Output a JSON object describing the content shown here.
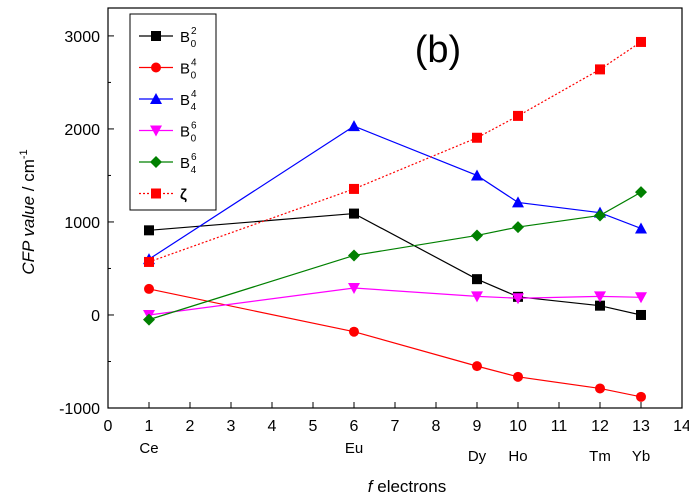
{
  "chart_data": {
    "type": "line",
    "panel_label": "(b)",
    "xlabel": {
      "italic": "f",
      "rest": " electrons"
    },
    "ylabel": {
      "italic": "CFP value",
      "rest": " / cm",
      "sup": "-1"
    },
    "xlim": [
      0,
      14
    ],
    "ylim": [
      -1000,
      3300
    ],
    "x_ticks": [
      0,
      1,
      2,
      3,
      4,
      5,
      6,
      7,
      8,
      9,
      10,
      11,
      12,
      13,
      14
    ],
    "y_ticks": [
      -1000,
      0,
      1000,
      2000,
      3000
    ],
    "grid": false,
    "legend_position": "top-left",
    "element_labels": [
      {
        "x": 1,
        "label": "Ce"
      },
      {
        "x": 6,
        "label": "Eu"
      },
      {
        "x": 9,
        "label": "Dy"
      },
      {
        "x": 10,
        "label": "Ho"
      },
      {
        "x": 12,
        "label": "Tm"
      },
      {
        "x": 13,
        "label": "Yb"
      }
    ],
    "x": [
      1,
      6,
      9,
      10,
      12,
      13
    ],
    "series": [
      {
        "name": "B",
        "sub": "0",
        "sup": "2",
        "color": "#000000",
        "marker": "square",
        "dashed": false,
        "values": [
          910,
          1090,
          385,
          195,
          100,
          0
        ]
      },
      {
        "name": "B",
        "sub": "0",
        "sup": "4",
        "color": "#ff0000",
        "marker": "circle",
        "dashed": false,
        "values": [
          280,
          -180,
          -550,
          -665,
          -790,
          -880
        ]
      },
      {
        "name": "B",
        "sub": "4",
        "sup": "4",
        "color": "#0000ff",
        "marker": "triangle-up",
        "dashed": false,
        "values": [
          600,
          2030,
          1500,
          1210,
          1100,
          930
        ]
      },
      {
        "name": "B",
        "sub": "0",
        "sup": "6",
        "color": "#ff00ff",
        "marker": "triangle-down",
        "dashed": false,
        "values": [
          0,
          290,
          200,
          180,
          200,
          190
        ]
      },
      {
        "name": "B",
        "sub": "4",
        "sup": "6",
        "color": "#008000",
        "marker": "diamond",
        "dashed": false,
        "values": [
          -50,
          640,
          855,
          945,
          1070,
          1320
        ]
      },
      {
        "name": "ζ",
        "sub": "",
        "sup": "",
        "color": "#ff0000",
        "marker": "square",
        "dashed": true,
        "values": [
          570,
          1355,
          1905,
          2140,
          2640,
          2935
        ]
      }
    ]
  }
}
